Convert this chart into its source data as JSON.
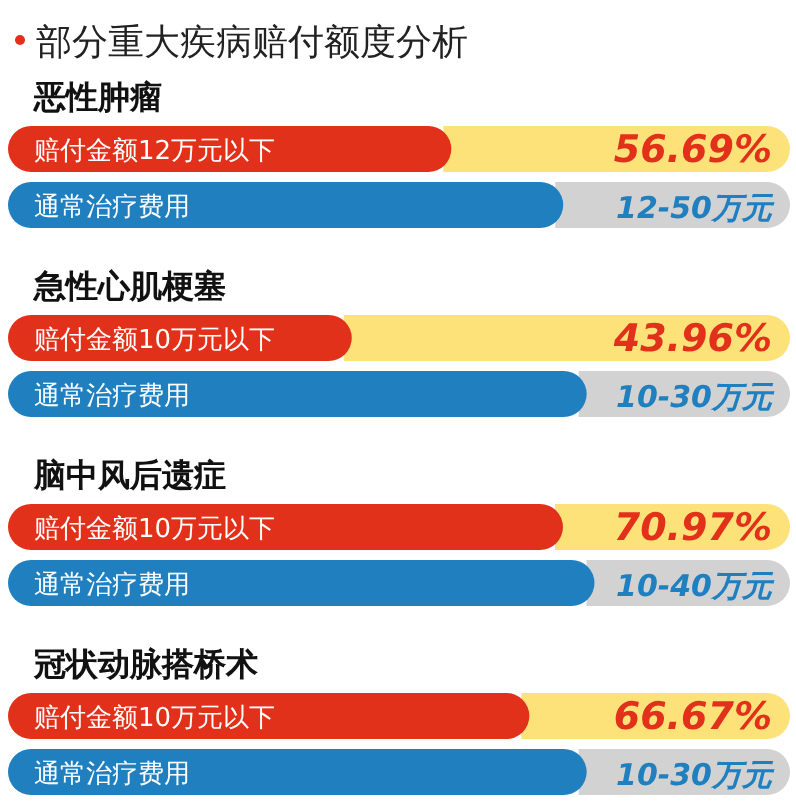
{
  "chart_data": [
    {
      "type": "bar",
      "orientation": "horizontal",
      "xlim": [
        0,
        100
      ],
      "title": "部分重大疾病赔付额度分析",
      "subtitle": "恶性肿瘤",
      "categories": [
        "赔付金额12万元以下",
        "通常治疗费用"
      ],
      "values": [
        56.69,
        71
      ],
      "colors": [
        "#e2311a",
        "#1f7fbf"
      ],
      "value_labels": [
        "56.69%",
        "12-50万元"
      ]
    },
    {
      "type": "bar",
      "orientation": "horizontal",
      "xlim": [
        0,
        100
      ],
      "subtitle": "急性心肌梗塞",
      "categories": [
        "赔付金额10万元以下",
        "通常治疗费用"
      ],
      "values": [
        43.96,
        74
      ],
      "colors": [
        "#e2311a",
        "#1f7fbf"
      ],
      "value_labels": [
        "43.96%",
        "10-30万元"
      ]
    },
    {
      "type": "bar",
      "orientation": "horizontal",
      "xlim": [
        0,
        100
      ],
      "subtitle": "脑中风后遗症",
      "categories": [
        "赔付金额10万元以下",
        "通常治疗费用"
      ],
      "values": [
        70.97,
        75
      ],
      "colors": [
        "#e2311a",
        "#1f7fbf"
      ],
      "value_labels": [
        "70.97%",
        "10-40万元"
      ]
    },
    {
      "type": "bar",
      "orientation": "horizontal",
      "xlim": [
        0,
        100
      ],
      "subtitle": "冠状动脉搭桥术",
      "categories": [
        "赔付金额10万元以下",
        "通常治疗费用"
      ],
      "values": [
        66.67,
        74
      ],
      "colors": [
        "#e2311a",
        "#1f7fbf"
      ],
      "value_labels": [
        "66.67%",
        "10-30万元"
      ]
    }
  ]
}
